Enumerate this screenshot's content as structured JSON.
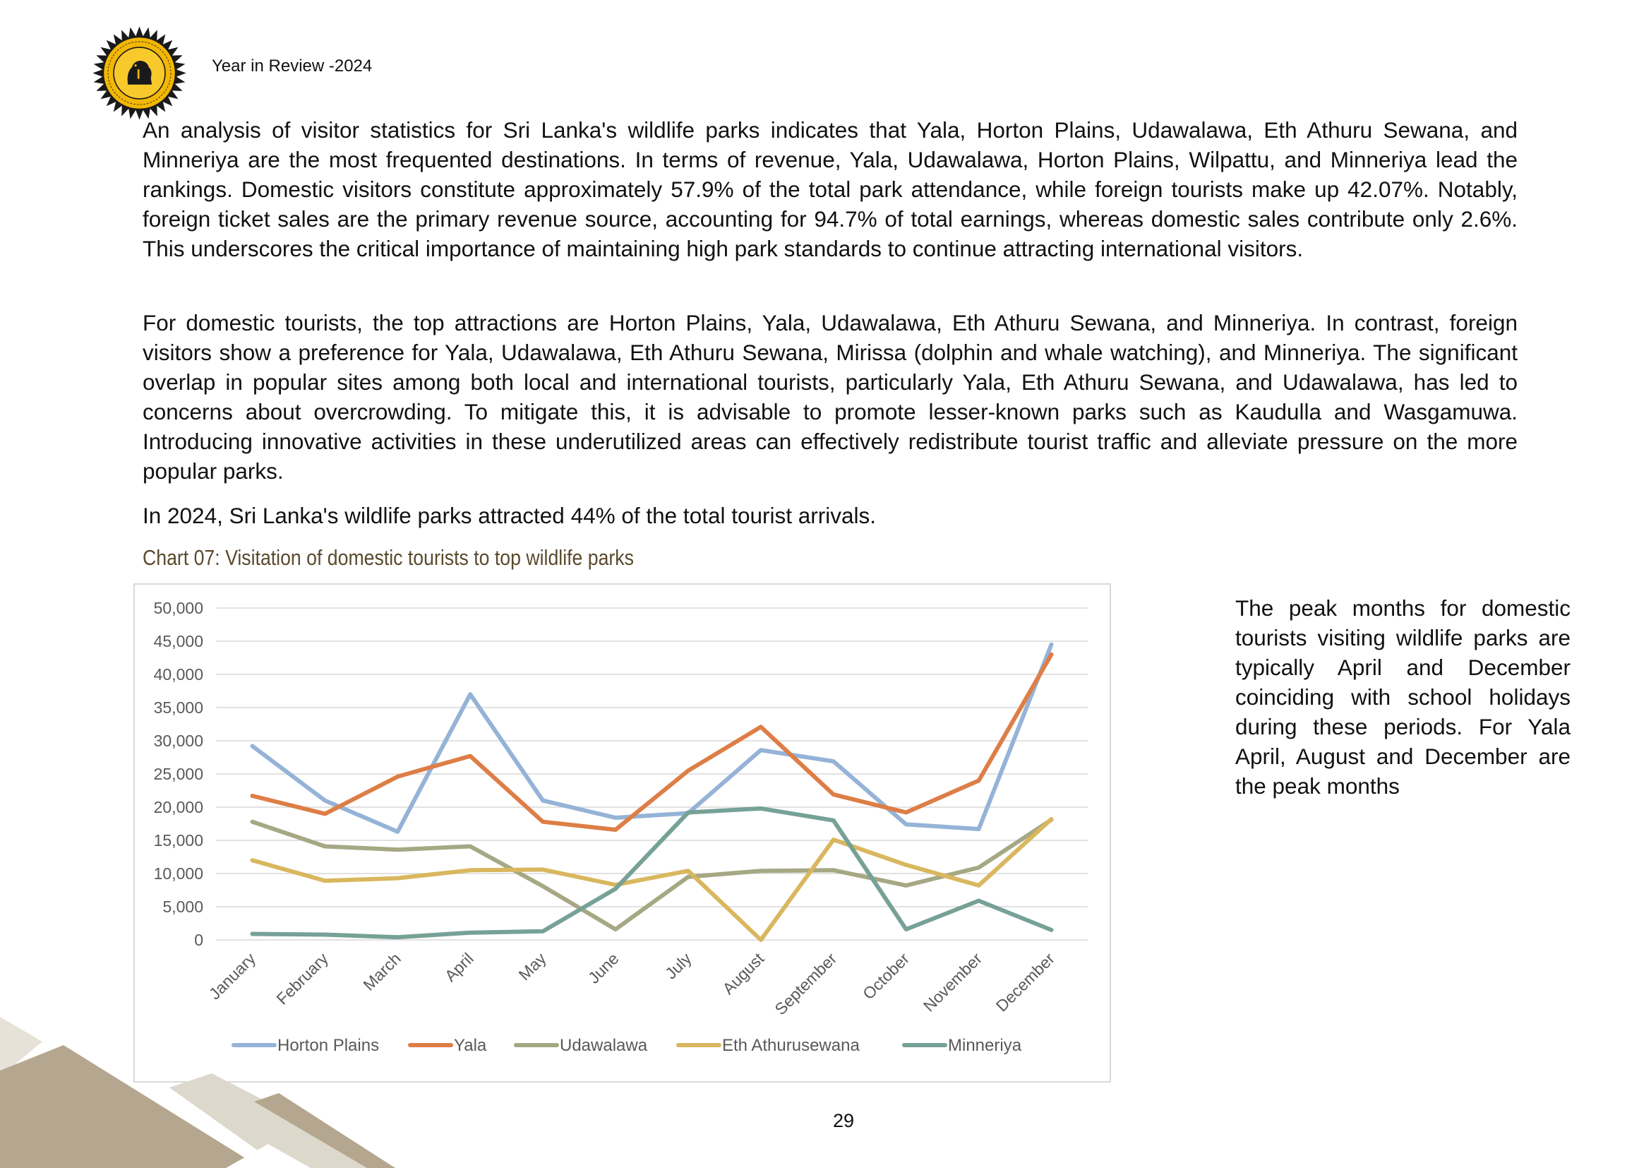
{
  "header": {
    "title": "Year in Review -2024",
    "logo_icon": "sri-lanka-tourism-development-authority-seal-icon",
    "logo_colors": {
      "ring": "#f2b705",
      "inner": "#1a1a1a"
    }
  },
  "paragraphs": [
    "An analysis of visitor statistics for Sri Lanka's wildlife parks indicates that Yala, Horton Plains, Udawalawa, Eth Athuru Sewana, and Minneriya are the most frequented destinations. In terms of revenue, Yala, Udawalawa, Horton Plains, Wilpattu, and Minneriya lead the rankings. Domestic visitors constitute approximately 57.9% of the total park attendance, while foreign tourists make up 42.07%. Notably, foreign ticket sales are the primary revenue source, accounting for 94.7% of total earnings, whereas domestic sales contribute only 2.6%. This underscores the critical importance of maintaining high park standards to continue attracting international visitors.",
    "For domestic tourists, the top attractions are Horton Plains, Yala, Udawalawa, Eth Athuru Sewana, and Minneriya. In contrast, foreign visitors show a preference for Yala, Udawalawa, Eth Athuru Sewana, Mirissa (dolphin and whale watching), and Minneriya. The significant overlap in popular sites among both local and international tourists, particularly Yala, Eth Athuru Sewana, and Udawalawa, has led to concerns about overcrowding. To mitigate this, it is advisable to promote lesser-known parks such as Kaudulla and Wasgamuwa. Introducing innovative activities in these underutilized areas can effectively redistribute tourist traffic and alleviate pressure on the more popular parks.",
    "In 2024, Sri Lanka's wildlife parks attracted 44% of the total tourist arrivals."
  ],
  "chart_caption": "Chart 07: Visitation of domestic tourists to top wildlife parks",
  "side_note": "The peak months for domestic tourists visiting wildlife parks are typically April and December coinciding with school holidays during these periods. For Yala April, August and December are the peak months",
  "page_number": "29",
  "chart_data": {
    "type": "line",
    "title": "",
    "xlabel": "",
    "ylabel": "",
    "categories": [
      "January",
      "February",
      "March",
      "April",
      "May",
      "June",
      "July",
      "August",
      "September",
      "October",
      "November",
      "December"
    ],
    "ylim": [
      0,
      50000
    ],
    "yticks": [
      "0",
      "5,000",
      "10,000",
      "15,000",
      "20,000",
      "25,000",
      "30,000",
      "35,000",
      "40,000",
      "45,000",
      "50,000"
    ],
    "grid": true,
    "legend_position": "bottom",
    "series": [
      {
        "name": "Horton Plains",
        "color": "#95b3d7",
        "values": [
          29200,
          21000,
          16300,
          37000,
          21000,
          18400,
          19100,
          28600,
          26900,
          17400,
          16700,
          44500
        ]
      },
      {
        "name": "Yala",
        "color": "#dd7e47",
        "values": [
          21700,
          19000,
          24600,
          27700,
          17800,
          16600,
          25500,
          32100,
          21900,
          19200,
          24000,
          43000
        ]
      },
      {
        "name": "Udawalawa",
        "color": "#a5a883",
        "values": [
          17800,
          14100,
          13600,
          14100,
          8100,
          1600,
          9500,
          10400,
          10500,
          8200,
          10900,
          18100
        ]
      },
      {
        "name": "Eth Athurusewana",
        "color": "#d9b75e",
        "values": [
          12000,
          8900,
          9300,
          10500,
          10600,
          8300,
          10400,
          0,
          15100,
          11300,
          8200,
          18200
        ]
      },
      {
        "name": "Minneriya",
        "color": "#76a197",
        "values": [
          900,
          800,
          400,
          1100,
          1300,
          7700,
          19200,
          19800,
          18000,
          1600,
          5900,
          1500
        ]
      }
    ]
  }
}
